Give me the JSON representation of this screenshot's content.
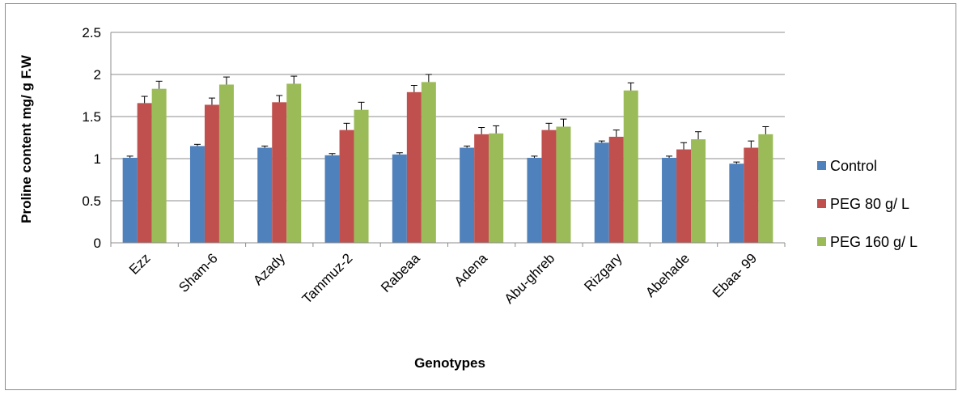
{
  "chart_data": {
    "type": "bar",
    "xlabel": "Genotypes",
    "ylabel": "Proline content mg/ g F.W",
    "ylim": [
      0,
      2.5
    ],
    "yticks": [
      0,
      0.5,
      1,
      1.5,
      2,
      2.5
    ],
    "ytick_labels": [
      "0",
      "0.5",
      "1",
      "1.5",
      "2",
      "2.5"
    ],
    "grid": "horizontal",
    "legend_position": "right",
    "categories": [
      "Ezz",
      "Sham-6",
      "Azady",
      "Tammuz-2",
      "Rabeaa",
      "Adena",
      "Abu-ghreb",
      "Rizgary",
      "Abehade",
      "Ebaa- 99"
    ],
    "series": [
      {
        "name": "Control",
        "color": "#4f81bd",
        "values": [
          1.01,
          1.15,
          1.13,
          1.04,
          1.05,
          1.13,
          1.01,
          1.19,
          1.01,
          0.94
        ],
        "errors": [
          0.02,
          0.02,
          0.02,
          0.02,
          0.02,
          0.02,
          0.02,
          0.02,
          0.02,
          0.02
        ]
      },
      {
        "name": "PEG 80 g/ L",
        "color": "#c0504d",
        "values": [
          1.66,
          1.64,
          1.67,
          1.34,
          1.79,
          1.29,
          1.34,
          1.26,
          1.11,
          1.13
        ],
        "errors": [
          0.08,
          0.08,
          0.08,
          0.08,
          0.08,
          0.08,
          0.08,
          0.08,
          0.08,
          0.08
        ]
      },
      {
        "name": "PEG 160 g/ L",
        "color": "#9bbb59",
        "values": [
          1.83,
          1.88,
          1.89,
          1.58,
          1.91,
          1.3,
          1.38,
          1.81,
          1.23,
          1.29
        ],
        "errors": [
          0.09,
          0.09,
          0.09,
          0.09,
          0.09,
          0.09,
          0.09,
          0.09,
          0.09,
          0.09
        ]
      }
    ]
  }
}
